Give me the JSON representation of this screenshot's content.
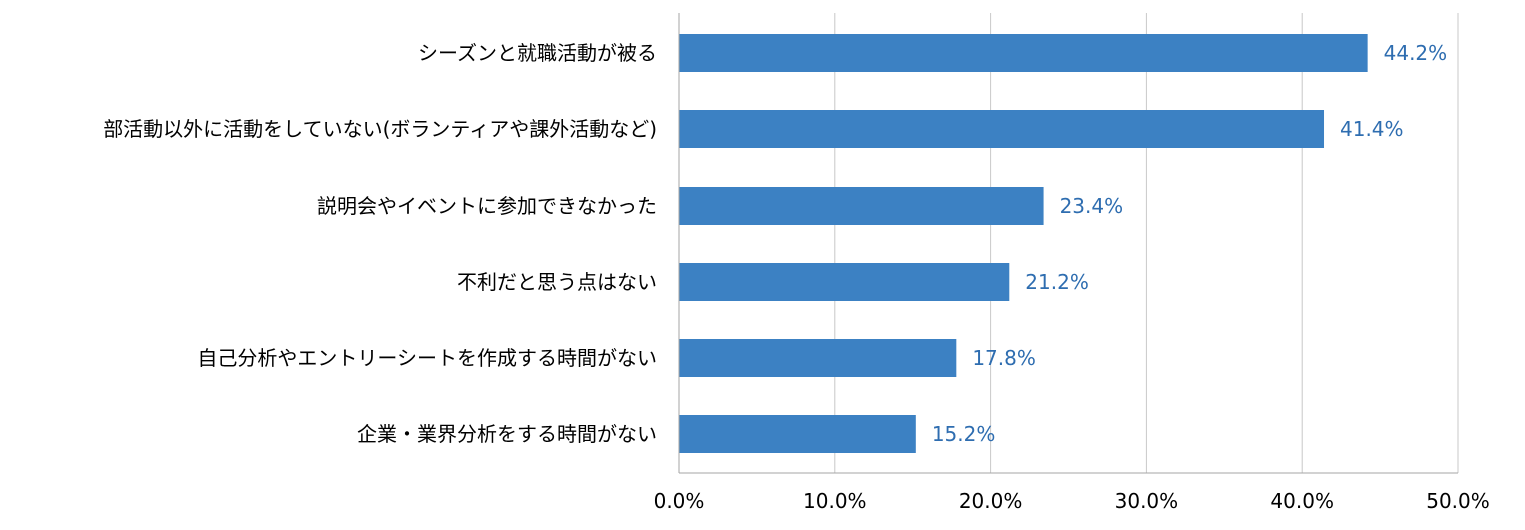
{
  "chart_data": {
    "type": "bar",
    "orientation": "horizontal",
    "categories": [
      "シーズンと就職活動が被る",
      "部活動以外に活動をしていない(ボランティアや課外活動など)",
      "説明会やイベントに参加できなかった",
      "不利だと思う点はない",
      "自己分析やエントリーシートを作成する時間がない",
      "企業・業界分析をする時間がない"
    ],
    "values": [
      44.2,
      41.4,
      23.4,
      21.2,
      17.8,
      15.2
    ],
    "value_labels": [
      "44.2%",
      "41.4%",
      "23.4%",
      "21.2%",
      "17.8%",
      "15.2%"
    ],
    "x_ticks": [
      0,
      10,
      20,
      30,
      40,
      50
    ],
    "x_tick_labels": [
      "0.0%",
      "10.0%",
      "20.0%",
      "30.0%",
      "40.0%",
      "50.0%"
    ],
    "xlim": [
      0,
      50
    ],
    "grid": "vertical",
    "legend": "none",
    "colors": {
      "bar": "#3c81c3",
      "value_label": "#2e6db0",
      "grid": "#c8c8c8",
      "axis": "#a6a6a6"
    }
  }
}
